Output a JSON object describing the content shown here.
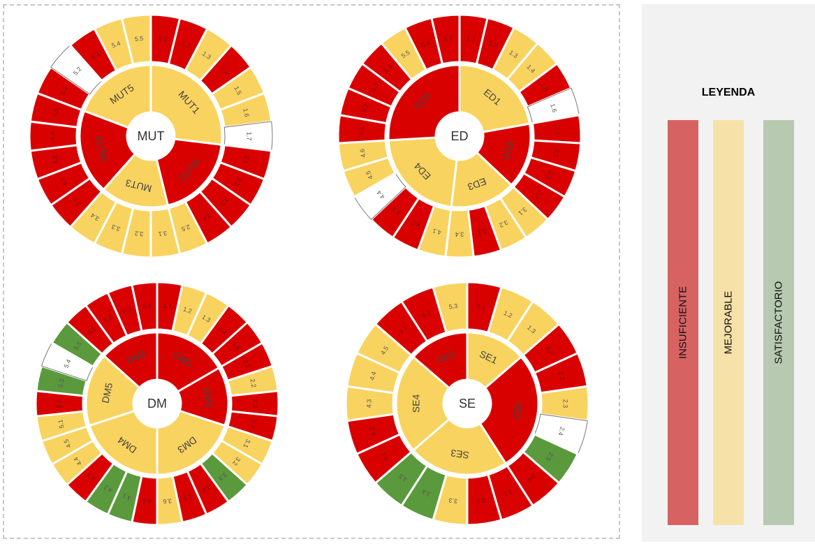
{
  "colors": {
    "red": "#d90000",
    "yellow": "#f9d35f",
    "green": "#5a9a3c",
    "white": "#ffffff"
  },
  "legend": {
    "title": "LEYENDA",
    "items": [
      {
        "label": "INSUFICIENTE",
        "color": "#d76262"
      },
      {
        "label": "MEJORABLE",
        "color": "#f6e2a8"
      },
      {
        "label": "SATISFACTORIO",
        "color": "#b7c9b0"
      }
    ]
  },
  "chart_data": [
    {
      "type": "sunburst",
      "center_label": "MUT",
      "inner": [
        {
          "label": "MUT1",
          "color": "yellow"
        },
        {
          "label": "MUT2",
          "color": "red"
        },
        {
          "label": "MUT3",
          "color": "yellow"
        },
        {
          "label": "MUT4",
          "color": "red"
        },
        {
          "label": "MUT5",
          "color": "yellow"
        }
      ],
      "outer": [
        {
          "label": "1.1",
          "color": "red"
        },
        {
          "label": "1.2",
          "color": "red"
        },
        {
          "label": "1.3",
          "color": "yellow"
        },
        {
          "label": "1.4",
          "color": "red"
        },
        {
          "label": "1.5",
          "color": "yellow"
        },
        {
          "label": "1.6",
          "color": "yellow"
        },
        {
          "label": "1.7",
          "color": "white"
        },
        {
          "label": "2.1",
          "color": "red"
        },
        {
          "label": "2.2",
          "color": "red"
        },
        {
          "label": "2.3",
          "color": "red"
        },
        {
          "label": "2.4",
          "color": "red"
        },
        {
          "label": "2.5",
          "color": "yellow"
        },
        {
          "label": "3.1",
          "color": "yellow"
        },
        {
          "label": "3.2",
          "color": "yellow"
        },
        {
          "label": "3.3",
          "color": "yellow"
        },
        {
          "label": "3.4",
          "color": "yellow"
        },
        {
          "label": "4.1",
          "color": "red"
        },
        {
          "label": "4.2",
          "color": "red"
        },
        {
          "label": "4.3",
          "color": "red"
        },
        {
          "label": "4.4",
          "color": "red"
        },
        {
          "label": "4.5",
          "color": "red"
        },
        {
          "label": "5.1",
          "color": "red"
        },
        {
          "label": "5.2",
          "color": "white"
        },
        {
          "label": "5.3",
          "color": "red"
        },
        {
          "label": "5.4",
          "color": "yellow"
        },
        {
          "label": "5.5",
          "color": "yellow"
        }
      ]
    },
    {
      "type": "sunburst",
      "center_label": "ED",
      "inner": [
        {
          "label": "ED1",
          "color": "yellow"
        },
        {
          "label": "ED2",
          "color": "red"
        },
        {
          "label": "ED3",
          "color": "yellow"
        },
        {
          "label": "ED4",
          "color": "yellow"
        },
        {
          "label": "ED5",
          "color": "red"
        }
      ],
      "outer": [
        {
          "label": "1.1",
          "color": "red"
        },
        {
          "label": "1.2",
          "color": "red"
        },
        {
          "label": "1.3",
          "color": "yellow"
        },
        {
          "label": "1.4",
          "color": "yellow"
        },
        {
          "label": "1.5",
          "color": "red"
        },
        {
          "label": "1.6",
          "color": "white"
        },
        {
          "label": "2.1",
          "color": "red"
        },
        {
          "label": "2.2",
          "color": "red"
        },
        {
          "label": "2.3",
          "color": "red"
        },
        {
          "label": "2.4",
          "color": "red"
        },
        {
          "label": "3.1",
          "color": "yellow"
        },
        {
          "label": "3.2",
          "color": "yellow"
        },
        {
          "label": "3.3",
          "color": "red"
        },
        {
          "label": "3.4",
          "color": "yellow"
        },
        {
          "label": "4.1",
          "color": "yellow"
        },
        {
          "label": "4.2",
          "color": "red"
        },
        {
          "label": "4.3",
          "color": "red"
        },
        {
          "label": "4.4",
          "color": "white"
        },
        {
          "label": "4.5",
          "color": "yellow"
        },
        {
          "label": "4.6",
          "color": "yellow"
        },
        {
          "label": "5.1",
          "color": "red"
        },
        {
          "label": "5.2",
          "color": "red"
        },
        {
          "label": "5.3",
          "color": "red"
        },
        {
          "label": "5.4",
          "color": "red"
        },
        {
          "label": "5.5",
          "color": "yellow"
        },
        {
          "label": "5.6",
          "color": "red"
        },
        {
          "label": "5.7",
          "color": "red"
        }
      ]
    },
    {
      "type": "sunburst",
      "center_label": "DM",
      "inner": [
        {
          "label": "DM1",
          "color": "red"
        },
        {
          "label": "DM2",
          "color": "red"
        },
        {
          "label": "DM3",
          "color": "yellow"
        },
        {
          "label": "DM4",
          "color": "yellow"
        },
        {
          "label": "DM5",
          "color": "yellow"
        },
        {
          "label": "DM6",
          "color": "red"
        }
      ],
      "outer": [
        {
          "label": "1.1",
          "color": "red"
        },
        {
          "label": "1.2",
          "color": "yellow"
        },
        {
          "label": "1.3",
          "color": "yellow"
        },
        {
          "label": "1.4",
          "color": "red"
        },
        {
          "label": "1.5",
          "color": "red"
        },
        {
          "label": "2.1",
          "color": "red"
        },
        {
          "label": "2.2",
          "color": "yellow"
        },
        {
          "label": "2.3",
          "color": "red"
        },
        {
          "label": "2.4",
          "color": "red"
        },
        {
          "label": "3.1",
          "color": "yellow"
        },
        {
          "label": "3.2",
          "color": "yellow"
        },
        {
          "label": "3.3",
          "color": "green"
        },
        {
          "label": "3.4",
          "color": "red"
        },
        {
          "label": "3.5",
          "color": "red"
        },
        {
          "label": "3.6",
          "color": "yellow"
        },
        {
          "label": "4.1",
          "color": "red"
        },
        {
          "label": "4.1",
          "color": "green"
        },
        {
          "label": "4.2",
          "color": "green"
        },
        {
          "label": "4.3",
          "color": "red"
        },
        {
          "label": "4.4",
          "color": "yellow"
        },
        {
          "label": "4.5",
          "color": "yellow"
        },
        {
          "label": "5.1",
          "color": "yellow"
        },
        {
          "label": "5.2",
          "color": "red"
        },
        {
          "label": "5.3",
          "color": "green"
        },
        {
          "label": "5.4",
          "color": "white"
        },
        {
          "label": "5.5",
          "color": "green"
        },
        {
          "label": "6.1",
          "color": "red"
        },
        {
          "label": "6.2",
          "color": "red"
        },
        {
          "label": "6.3",
          "color": "red"
        },
        {
          "label": "6.4",
          "color": "red"
        }
      ]
    },
    {
      "type": "sunburst",
      "center_label": "SE",
      "inner": [
        {
          "label": "SE1",
          "color": "yellow"
        },
        {
          "label": "SE2",
          "color": "red"
        },
        {
          "label": "SE3",
          "color": "yellow"
        },
        {
          "label": "SE4",
          "color": "yellow"
        },
        {
          "label": "SE5",
          "color": "red"
        }
      ],
      "outer": [
        {
          "label": "1.1",
          "color": "red"
        },
        {
          "label": "1.2",
          "color": "yellow"
        },
        {
          "label": "1.3",
          "color": "yellow"
        },
        {
          "label": "2.1",
          "color": "red"
        },
        {
          "label": "2.2",
          "color": "red"
        },
        {
          "label": "2.3",
          "color": "yellow"
        },
        {
          "label": "2.4",
          "color": "white"
        },
        {
          "label": "2.5",
          "color": "green"
        },
        {
          "label": "2.6",
          "color": "red"
        },
        {
          "label": "3.1",
          "color": "red"
        },
        {
          "label": "3.2",
          "color": "red"
        },
        {
          "label": "3.3",
          "color": "yellow"
        },
        {
          "label": "3.4",
          "color": "green"
        },
        {
          "label": "3.5",
          "color": "green"
        },
        {
          "label": "4.1",
          "color": "red"
        },
        {
          "label": "4.2",
          "color": "red"
        },
        {
          "label": "4.3",
          "color": "yellow"
        },
        {
          "label": "4.4",
          "color": "yellow"
        },
        {
          "label": "4.5",
          "color": "yellow"
        },
        {
          "label": "5.1",
          "color": "red"
        },
        {
          "label": "5.2",
          "color": "red"
        },
        {
          "label": "5.3",
          "color": "yellow"
        }
      ]
    }
  ]
}
